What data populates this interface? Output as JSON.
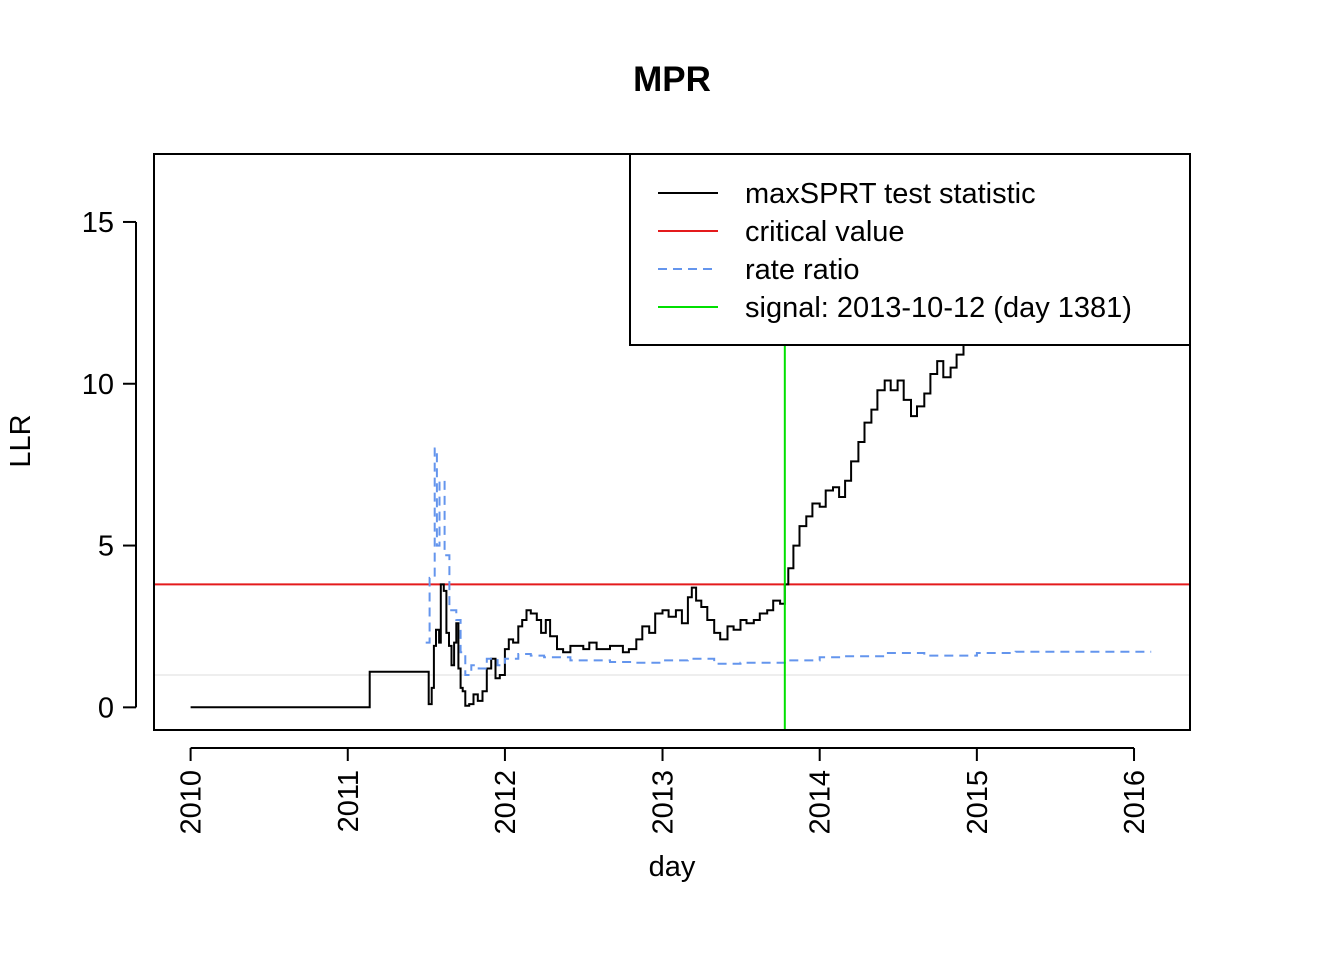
{
  "chart_data": {
    "type": "line",
    "title": "MPR",
    "xlabel": "day",
    "ylabel": "LLR",
    "x_axis": {
      "kind": "date",
      "range": [
        "2009-10-08",
        "2016-05-10"
      ]
    },
    "y_axis": {
      "range": [
        -0.7,
        17.1
      ]
    },
    "x_ticks": [
      "2010",
      "2011",
      "2012",
      "2013",
      "2014",
      "2015",
      "2016"
    ],
    "y_ticks": [
      "0",
      "5",
      "10",
      "15"
    ],
    "grid": false,
    "legend": {
      "position": "top-right",
      "entries": [
        {
          "label": "maxSPRT test statistic",
          "color": "#000000",
          "style": "solid"
        },
        {
          "label": "critical value",
          "color": "#e41a1c",
          "style": "solid"
        },
        {
          "label": "rate ratio",
          "color": "#6495ed",
          "style": "dashed"
        },
        {
          "label": "signal: 2013-10-12 (day 1381)",
          "color": "#00e000",
          "style": "solid"
        }
      ]
    },
    "critical_value": 3.8,
    "reference_line": 1.0,
    "signal": {
      "date": "2013-10-12",
      "day": 1381
    },
    "series": [
      {
        "name": "maxSPRT test statistic",
        "color": "#000000",
        "dash": "",
        "step": true,
        "points": [
          [
            "2010-01-01",
            0.0
          ],
          [
            "2011-02-20",
            0.0
          ],
          [
            "2011-02-21",
            1.1
          ],
          [
            "2011-07-05",
            1.1
          ],
          [
            "2011-07-08",
            0.1
          ],
          [
            "2011-07-15",
            0.6
          ],
          [
            "2011-07-20",
            1.9
          ],
          [
            "2011-07-25",
            2.4
          ],
          [
            "2011-08-01",
            2.0
          ],
          [
            "2011-08-05",
            3.8
          ],
          [
            "2011-08-12",
            3.6
          ],
          [
            "2011-08-18",
            2.3
          ],
          [
            "2011-08-24",
            1.9
          ],
          [
            "2011-08-30",
            1.3
          ],
          [
            "2011-09-05",
            2.0
          ],
          [
            "2011-09-10",
            2.6
          ],
          [
            "2011-09-15",
            1.2
          ],
          [
            "2011-09-20",
            0.6
          ],
          [
            "2011-09-25",
            0.5
          ],
          [
            "2011-10-01",
            0.05
          ],
          [
            "2011-10-10",
            0.1
          ],
          [
            "2011-10-20",
            0.4
          ],
          [
            "2011-10-30",
            0.2
          ],
          [
            "2011-11-10",
            0.5
          ],
          [
            "2011-11-20",
            1.2
          ],
          [
            "2011-11-30",
            1.5
          ],
          [
            "2011-12-10",
            0.9
          ],
          [
            "2011-12-20",
            1.0
          ],
          [
            "2012-01-01",
            1.8
          ],
          [
            "2012-01-10",
            2.1
          ],
          [
            "2012-01-20",
            2.0
          ],
          [
            "2012-02-01",
            2.5
          ],
          [
            "2012-02-10",
            2.7
          ],
          [
            "2012-02-20",
            3.0
          ],
          [
            "2012-03-01",
            2.9
          ],
          [
            "2012-03-15",
            2.7
          ],
          [
            "2012-03-25",
            2.3
          ],
          [
            "2012-04-05",
            2.7
          ],
          [
            "2012-04-15",
            2.2
          ],
          [
            "2012-05-01",
            1.8
          ],
          [
            "2012-05-15",
            1.7
          ],
          [
            "2012-06-01",
            1.9
          ],
          [
            "2012-07-01",
            1.8
          ],
          [
            "2012-07-15",
            2.0
          ],
          [
            "2012-08-01",
            1.8
          ],
          [
            "2012-09-01",
            1.9
          ],
          [
            "2012-10-01",
            1.7
          ],
          [
            "2012-10-15",
            1.8
          ],
          [
            "2012-11-01",
            2.1
          ],
          [
            "2012-11-15",
            2.5
          ],
          [
            "2012-12-01",
            2.3
          ],
          [
            "2012-12-15",
            2.9
          ],
          [
            "2013-01-01",
            3.0
          ],
          [
            "2013-01-15",
            2.8
          ],
          [
            "2013-02-01",
            3.0
          ],
          [
            "2013-02-15",
            2.6
          ],
          [
            "2013-03-01",
            3.4
          ],
          [
            "2013-03-10",
            3.7
          ],
          [
            "2013-03-20",
            3.3
          ],
          [
            "2013-04-01",
            3.1
          ],
          [
            "2013-04-15",
            2.7
          ],
          [
            "2013-05-01",
            2.3
          ],
          [
            "2013-05-15",
            2.1
          ],
          [
            "2013-06-01",
            2.5
          ],
          [
            "2013-06-15",
            2.4
          ],
          [
            "2013-07-01",
            2.7
          ],
          [
            "2013-07-15",
            2.6
          ],
          [
            "2013-08-01",
            2.7
          ],
          [
            "2013-08-15",
            2.9
          ],
          [
            "2013-09-01",
            3.0
          ],
          [
            "2013-09-15",
            3.3
          ],
          [
            "2013-10-01",
            3.2
          ],
          [
            "2013-10-12",
            3.8
          ],
          [
            "2013-10-20",
            4.3
          ],
          [
            "2013-11-01",
            5.0
          ],
          [
            "2013-11-15",
            5.6
          ],
          [
            "2013-12-01",
            5.9
          ],
          [
            "2013-12-15",
            6.3
          ],
          [
            "2014-01-01",
            6.2
          ],
          [
            "2014-01-15",
            6.7
          ],
          [
            "2014-02-01",
            6.8
          ],
          [
            "2014-02-15",
            6.5
          ],
          [
            "2014-03-01",
            7.0
          ],
          [
            "2014-03-15",
            7.6
          ],
          [
            "2014-04-01",
            8.2
          ],
          [
            "2014-04-15",
            8.8
          ],
          [
            "2014-05-01",
            9.2
          ],
          [
            "2014-05-15",
            9.8
          ],
          [
            "2014-06-01",
            10.1
          ],
          [
            "2014-06-15",
            9.8
          ],
          [
            "2014-07-01",
            10.1
          ],
          [
            "2014-07-15",
            9.5
          ],
          [
            "2014-08-01",
            9.0
          ],
          [
            "2014-08-15",
            9.3
          ],
          [
            "2014-09-01",
            9.7
          ],
          [
            "2014-09-15",
            10.3
          ],
          [
            "2014-10-01",
            10.7
          ],
          [
            "2014-10-15",
            10.2
          ],
          [
            "2014-11-01",
            10.5
          ],
          [
            "2014-11-15",
            10.9
          ],
          [
            "2014-12-01",
            11.2
          ],
          [
            "2014-12-15",
            11.6
          ],
          [
            "2015-01-01",
            12.0
          ],
          [
            "2015-02-01",
            12.4
          ]
        ]
      },
      {
        "name": "rate ratio",
        "color": "#6495ed",
        "dash": "9,6",
        "step": true,
        "points": [
          [
            "2011-07-01",
            2.0
          ],
          [
            "2011-07-10",
            4.0
          ],
          [
            "2011-07-22",
            8.0
          ],
          [
            "2011-07-27",
            5.0
          ],
          [
            "2011-08-02",
            7.0
          ],
          [
            "2011-08-14",
            4.7
          ],
          [
            "2011-08-25",
            3.0
          ],
          [
            "2011-09-10",
            2.7
          ],
          [
            "2011-09-20",
            1.7
          ],
          [
            "2011-10-01",
            1.0
          ],
          [
            "2011-10-15",
            1.3
          ],
          [
            "2011-11-01",
            1.2
          ],
          [
            "2011-11-20",
            1.5
          ],
          [
            "2011-12-15",
            1.3
          ],
          [
            "2012-01-01",
            1.5
          ],
          [
            "2012-02-01",
            1.65
          ],
          [
            "2012-03-01",
            1.6
          ],
          [
            "2012-04-01",
            1.55
          ],
          [
            "2012-06-01",
            1.45
          ],
          [
            "2012-09-01",
            1.4
          ],
          [
            "2012-11-01",
            1.38
          ],
          [
            "2013-01-01",
            1.45
          ],
          [
            "2013-03-01",
            1.5
          ],
          [
            "2013-05-01",
            1.35
          ],
          [
            "2013-07-01",
            1.38
          ],
          [
            "2013-10-12",
            1.45
          ],
          [
            "2014-01-01",
            1.55
          ],
          [
            "2014-03-01",
            1.58
          ],
          [
            "2014-06-01",
            1.68
          ],
          [
            "2014-09-01",
            1.6
          ],
          [
            "2015-01-01",
            1.68
          ],
          [
            "2015-04-01",
            1.72
          ],
          [
            "2016-02-10",
            1.72
          ]
        ]
      }
    ]
  }
}
